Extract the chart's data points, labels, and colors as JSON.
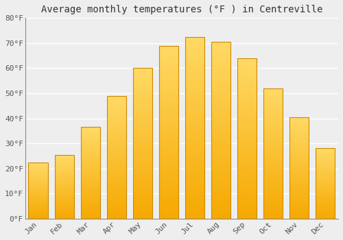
{
  "title": "Average monthly temperatures (°F ) in Centreville",
  "months": [
    "Jan",
    "Feb",
    "Mar",
    "Apr",
    "May",
    "Jun",
    "Jul",
    "Aug",
    "Sep",
    "Oct",
    "Nov",
    "Dec"
  ],
  "values": [
    22.5,
    25.5,
    36.5,
    49.0,
    60.0,
    69.0,
    72.5,
    70.5,
    64.0,
    52.0,
    40.5,
    28.0
  ],
  "bar_color_bottom": "#F5A800",
  "bar_color_top": "#FFD966",
  "bar_edge_color": "#CC8800",
  "background_color": "#EEEEEE",
  "plot_bg_color": "#EEEEEE",
  "ylim": [
    0,
    80
  ],
  "yticks": [
    0,
    10,
    20,
    30,
    40,
    50,
    60,
    70,
    80
  ],
  "ytick_labels": [
    "0°F",
    "10°F",
    "20°F",
    "30°F",
    "40°F",
    "50°F",
    "60°F",
    "70°F",
    "80°F"
  ],
  "title_fontsize": 10,
  "tick_fontsize": 8,
  "grid_color": "#FFFFFF",
  "bar_width": 0.75
}
